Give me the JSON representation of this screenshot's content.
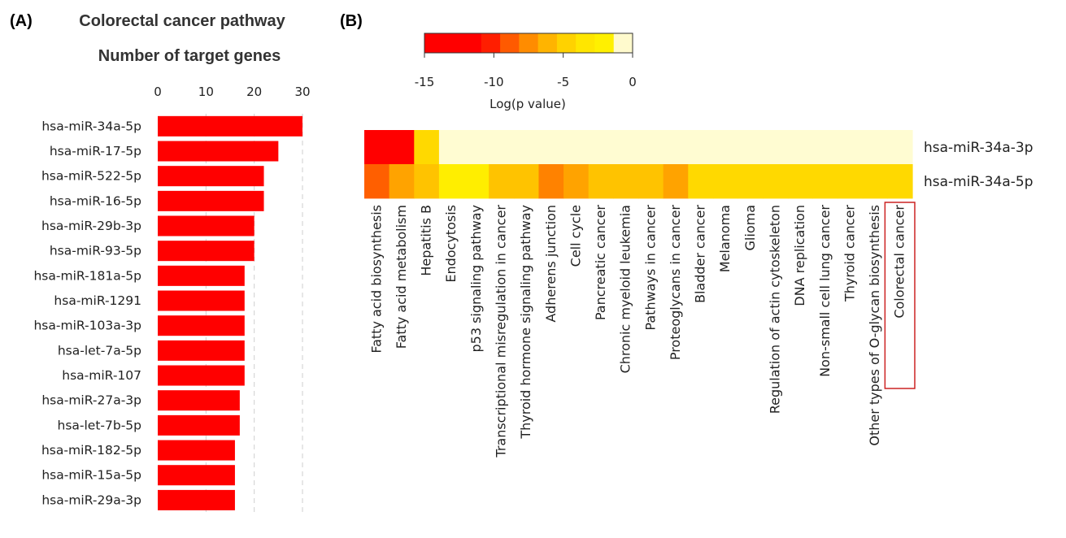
{
  "panels": {
    "a_label": "(A)",
    "b_label": "(B)"
  },
  "chart_data": [
    {
      "type": "bar",
      "orientation": "horizontal",
      "title": "Colorectal cancer pathway",
      "xlabel": "Number of target genes",
      "ylabel": "",
      "xlim": [
        0,
        30
      ],
      "xticks": [
        0,
        10,
        20,
        30
      ],
      "grid": "vertical dashed",
      "bar_color": "#ff0000",
      "categories": [
        "hsa-miR-34a-5p",
        "hsa-miR-17-5p",
        "hsa-miR-522-5p",
        "hsa-miR-16-5p",
        "hsa-miR-29b-3p",
        "hsa-miR-93-5p",
        "hsa-miR-181a-5p",
        "hsa-miR-1291",
        "hsa-miR-103a-3p",
        "hsa-let-7a-5p",
        "hsa-miR-107",
        "hsa-miR-27a-3p",
        "hsa-let-7b-5p",
        "hsa-miR-182-5p",
        "hsa-miR-15a-5p",
        "hsa-miR-29a-3p"
      ],
      "values": [
        30,
        25,
        22,
        22,
        20,
        20,
        18,
        18,
        18,
        18,
        18,
        17,
        17,
        16,
        16,
        16
      ]
    },
    {
      "type": "heatmap",
      "colorbar": {
        "label": "Log(p value)",
        "ticks": [
          -15,
          -10,
          -5,
          0
        ],
        "range": [
          -15,
          0
        ],
        "colors": [
          "#ff0000",
          "#ff0000",
          "#ff0000",
          "#ff1e00",
          "#ff5a00",
          "#ff8c00",
          "#ffb400",
          "#ffd200",
          "#ffe600",
          "#fff000",
          "#fffacd"
        ]
      },
      "rows": [
        "hsa-miR-34a-3p",
        "hsa-miR-34a-5p"
      ],
      "columns": [
        "Fatty acid biosynthesis",
        "Fatty acid metabolism",
        "Hepatitis B",
        "Endocytosis",
        "p53 signaling pathway",
        "Transcriptional misregulation in cancer",
        "Thyroid hormone signaling pathway",
        "Adherens junction",
        "Cell cycle",
        "Pancreatic cancer",
        "Chronic myeloid leukemia",
        "Pathways in cancer",
        "Proteoglycans in cancer",
        "Bladder cancer",
        "Melanoma",
        "Glioma",
        "Regulation of actin cytoskeleton",
        "DNA replication",
        "Non-small cell lung cancer",
        "Thyroid cancer",
        "Other types of O-glycan biosynthesis",
        "Colorectal cancer"
      ],
      "values": [
        [
          -15,
          -15,
          -3,
          0,
          0,
          0,
          0,
          0,
          0,
          0,
          0,
          0,
          0,
          0,
          0,
          0,
          0,
          0,
          0,
          0,
          0,
          0
        ],
        [
          -7,
          -5,
          -4,
          -2,
          -2,
          -4,
          -4,
          -6,
          -5,
          -4,
          -4,
          -4,
          -5,
          -3,
          -3,
          -3,
          -3,
          -3,
          -3,
          -3,
          -3,
          -3
        ]
      ],
      "highlighted_column": "Colorectal cancer",
      "highlight_color": "#cc2222"
    }
  ]
}
